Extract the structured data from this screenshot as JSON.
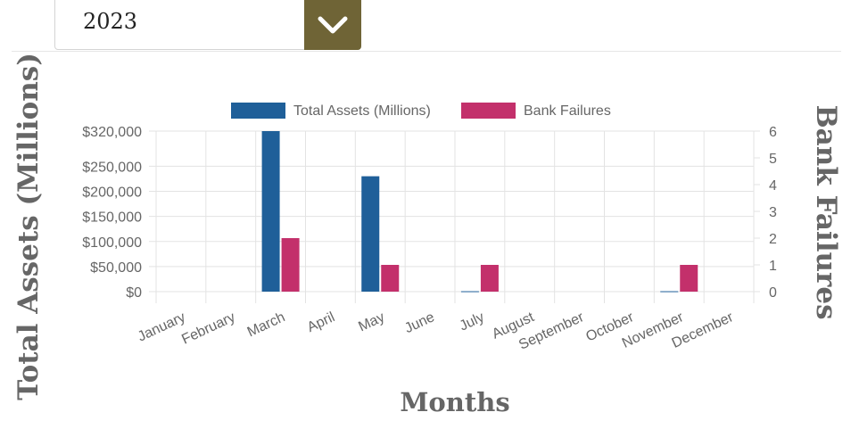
{
  "year_select": {
    "value": "2023",
    "button_icon": "chevron-down-icon"
  },
  "chart_data": {
    "type": "bar",
    "categories": [
      "January",
      "February",
      "March",
      "April",
      "May",
      "June",
      "July",
      "August",
      "September",
      "October",
      "November",
      "December"
    ],
    "series": [
      {
        "name": "Total Assets (Millions)",
        "axis": "left",
        "color": "#1f5f99",
        "values": [
          0,
          0,
          320000,
          0,
          230000,
          0,
          800,
          0,
          0,
          0,
          800,
          0
        ]
      },
      {
        "name": "Bank Failures",
        "axis": "right",
        "color": "#c3306b",
        "values": [
          0,
          0,
          2,
          0,
          1,
          0,
          1,
          0,
          0,
          0,
          1,
          0
        ]
      }
    ],
    "ylabel": "Total Assets (Millions)",
    "y2label": "Bank Failures",
    "xlabel": "Months",
    "ylim": [
      0,
      320000
    ],
    "y2lim": [
      0,
      6
    ],
    "y_ticks": [
      "$0",
      "$50,000",
      "$100,000",
      "$150,000",
      "$200,000",
      "$250,000",
      "$320,000"
    ],
    "y_tick_values": [
      0,
      50000,
      100000,
      150000,
      200000,
      250000,
      320000
    ],
    "y2_ticks": [
      "0",
      "1",
      "2",
      "3",
      "4",
      "5",
      "6"
    ],
    "grid": true,
    "legend_position": "top"
  }
}
